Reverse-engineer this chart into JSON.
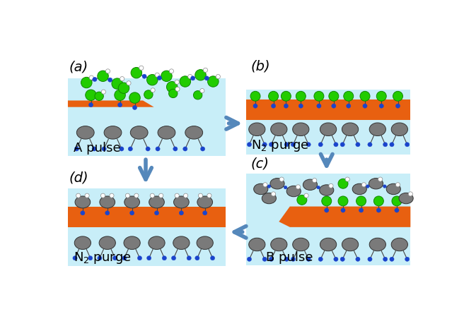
{
  "bg_color": "#ffffff",
  "panel_bg": "#c8eef8",
  "orange_color": "#e86010",
  "gray_color": "#7a7a7a",
  "green_color": "#22cc00",
  "blue_color": "#1a44cc",
  "white_color": "#ffffff",
  "arrow_color": "#5588bb",
  "panel_labels": [
    "(a)",
    "(b)",
    "(c)",
    "(d)"
  ],
  "panel_texts": [
    "A pulse",
    "N$_2$ purge",
    "B pulse",
    "N$_2$ purge"
  ],
  "label_fontsize": 14,
  "text_fontsize": 13
}
